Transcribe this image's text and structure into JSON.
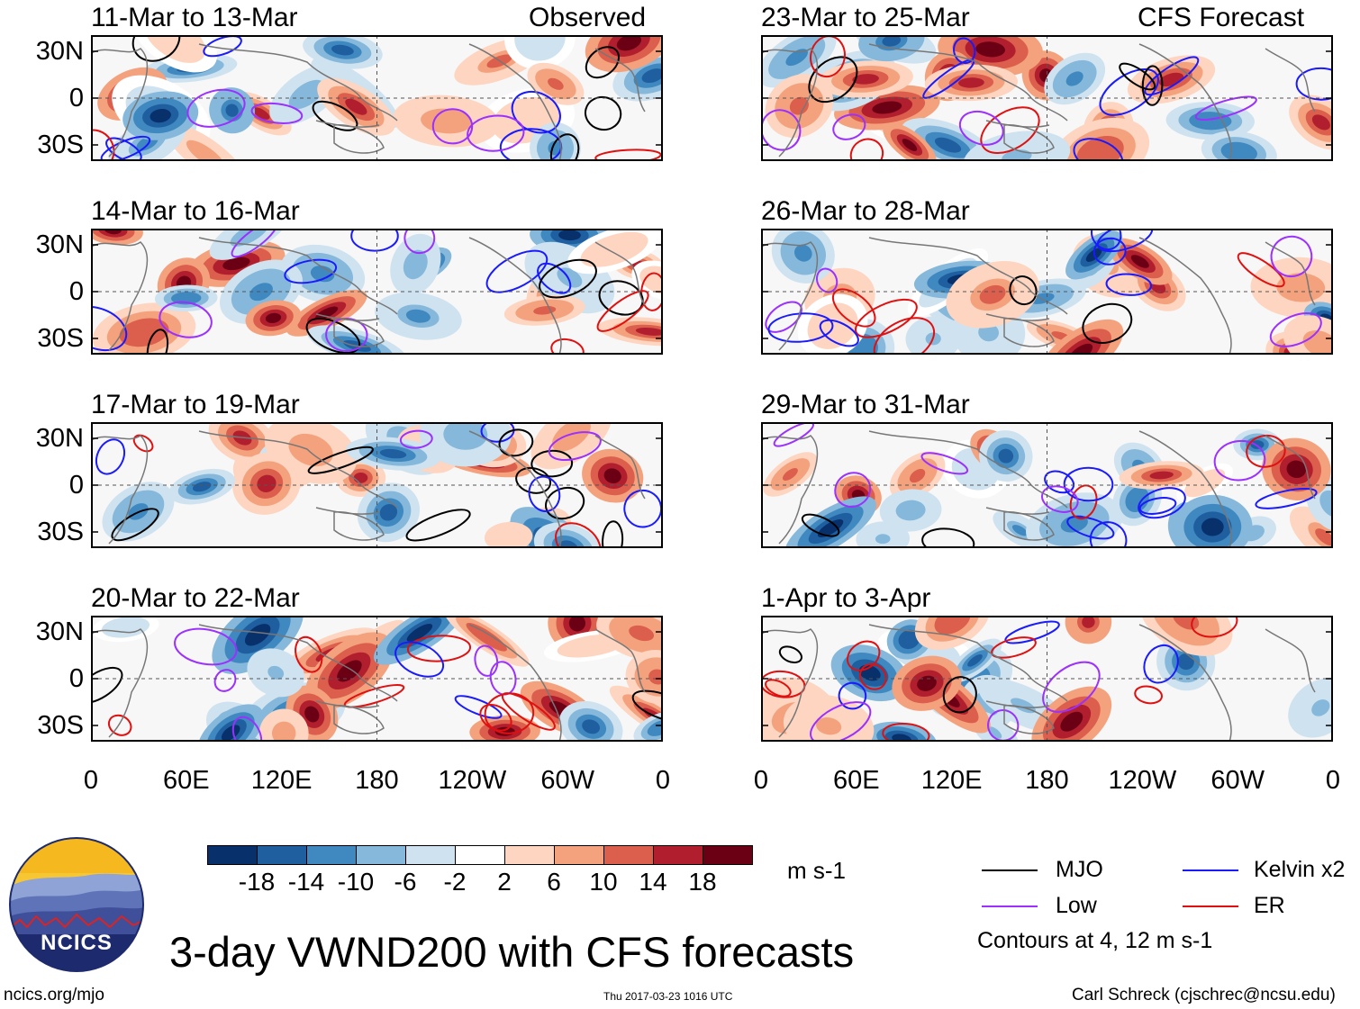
{
  "figure": {
    "main_title": "3-day VWND200 with CFS forecasts",
    "left_column_label": "Observed",
    "right_column_label": "CFS Forecast",
    "footer_left": "ncics.org/mjo",
    "footer_center": "Thu 2017-03-23 1016 UTC",
    "footer_right": "Carl Schreck (cjschrec@ncsu.edu)",
    "logo_text": "NCICS"
  },
  "chart_data": {
    "type": "heatmap",
    "variable": "VWND200",
    "units": "m s-1",
    "ylabels": [
      "30N",
      "0",
      "30S"
    ],
    "xlabels": [
      "0",
      "60E",
      "120E",
      "180",
      "120W",
      "60W",
      "0"
    ],
    "panels": [
      {
        "title": "11-Mar to 13-Mar",
        "source": "Observed"
      },
      {
        "title": "14-Mar to 16-Mar",
        "source": "Observed"
      },
      {
        "title": "17-Mar to 19-Mar",
        "source": "Observed"
      },
      {
        "title": "20-Mar to 22-Mar",
        "source": "Observed"
      },
      {
        "title": "23-Mar to 25-Mar",
        "source": "CFS Forecast"
      },
      {
        "title": "26-Mar to 28-Mar",
        "source": "CFS Forecast"
      },
      {
        "title": "29-Mar to 31-Mar",
        "source": "CFS Forecast"
      },
      {
        "title": "1-Apr to 3-Apr",
        "source": "CFS Forecast"
      }
    ],
    "colorbar": {
      "ticks": [
        "-18",
        "-14",
        "-10",
        "-6",
        "-2",
        "2",
        "6",
        "10",
        "14",
        "18"
      ],
      "colors": [
        "#08306b",
        "#1f5fa0",
        "#3f88c0",
        "#85b8da",
        "#cfe2f0",
        "#ffffff",
        "#fdd5c0",
        "#f4a27e",
        "#db5f4c",
        "#b11e2d",
        "#6b0015"
      ]
    },
    "legend": [
      {
        "label": "MJO",
        "color": "#000000"
      },
      {
        "label": "Kelvin x2",
        "color": "#1a1aff"
      },
      {
        "label": "Low",
        "color": "#9b30ff"
      },
      {
        "label": "ER",
        "color": "#e01010"
      }
    ],
    "contour_note": "Contours at 4, 12 m s-1"
  }
}
